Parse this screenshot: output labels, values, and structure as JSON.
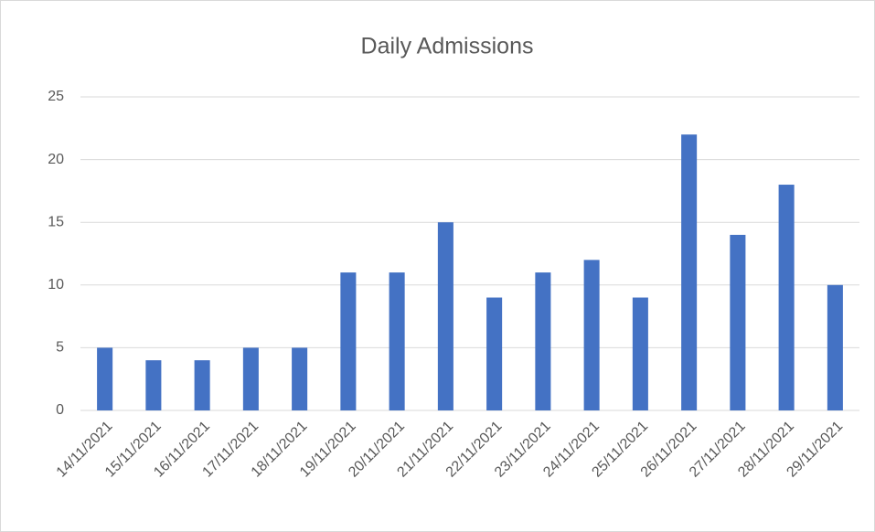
{
  "chart_data": {
    "type": "bar",
    "title": "Daily Admissions",
    "categories": [
      "14/11/2021",
      "15/11/2021",
      "16/11/2021",
      "17/11/2021",
      "18/11/2021",
      "19/11/2021",
      "20/11/2021",
      "21/11/2021",
      "22/11/2021",
      "23/11/2021",
      "24/11/2021",
      "25/11/2021",
      "26/11/2021",
      "27/11/2021",
      "28/11/2021",
      "29/11/2021"
    ],
    "values": [
      5,
      4,
      4,
      5,
      5,
      11,
      11,
      15,
      9,
      11,
      12,
      9,
      22,
      14,
      18,
      10
    ],
    "color": "#4472c4",
    "ylim": [
      0,
      25
    ],
    "yticks": [
      0,
      5,
      10,
      15,
      20,
      25
    ],
    "grid": true
  }
}
